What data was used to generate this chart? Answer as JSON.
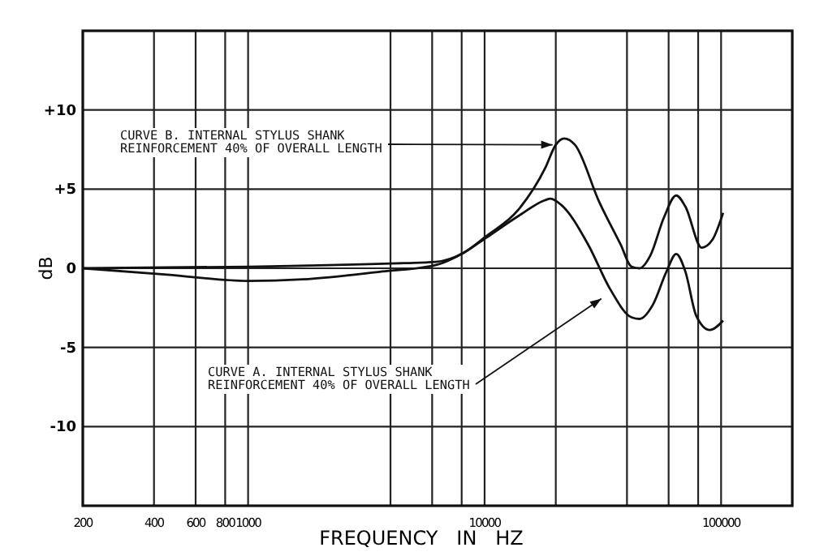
{
  "chart_data": {
    "type": "line",
    "xlabel": "FREQUENCY   IN   HZ",
    "ylabel": "dB",
    "log": "x",
    "grid": true,
    "marker": "none",
    "line_style": "solid",
    "xlim": [
      200,
      200000
    ],
    "ylim": [
      -15,
      15
    ],
    "xticks": [
      200,
      400,
      600,
      800,
      1000,
      {
        "value": 4000,
        "label": null
      },
      {
        "value": 6000,
        "label": null
      },
      {
        "value": 8000,
        "label": null
      },
      10000,
      {
        "value": 20000,
        "label": null
      },
      {
        "value": 40000,
        "label": null
      },
      {
        "value": 60000,
        "label": null
      },
      {
        "value": 80000,
        "label": null
      },
      100000
    ],
    "yticks": [
      {
        "value": 10,
        "label": "+10"
      },
      {
        "value": 5,
        "label": "+5"
      },
      0,
      -5,
      -10
    ],
    "series": [
      {
        "color": "#111111",
        "x": [
          200,
          1000,
          4000,
          6200,
          8200,
          10100,
          13900,
          18000,
          20000,
          21700,
          24100,
          30500,
          37600,
          41800,
          45200,
          50200,
          57300,
          64600,
          70600,
          82800,
          91900,
          102000
        ],
        "values": [
          0,
          0.1,
          0.3,
          0.4,
          1.0,
          2.0,
          3.7,
          6.3,
          7.8,
          8.2,
          7.8,
          4.2,
          1.5,
          0.1,
          0,
          0.8,
          3.2,
          4.6,
          3.9,
          1.3,
          1.8,
          3.5
        ]
      },
      {
        "color": "#111111",
        "x": [
          200,
          455,
          1000,
          1700,
          3700,
          6200,
          8200,
          10100,
          13900,
          18000,
          19000,
          21100,
          27400,
          33900,
          41800,
          45200,
          51500,
          58800,
          64600,
          70600,
          78500,
          89600,
          102000
        ],
        "values": [
          0,
          -0.4,
          -0.8,
          -0.7,
          -0.2,
          0.2,
          1.0,
          1.9,
          3.3,
          4.3,
          4.4,
          4.0,
          1.5,
          -1.3,
          -3.1,
          -3.2,
          -2.3,
          -0.2,
          0.9,
          -0.2,
          -3.0,
          -3.9,
          -3.3
        ]
      }
    ],
    "annotations": [
      {
        "text": "CURVE B. INTERNAL STYLUS SHANK\nREINFORCEMENT 40% OF OVERALL LENGTH",
        "x": 20000,
        "y": 7.8
      },
      {
        "text": "CURVE A. INTERNAL STYLUS SHANK\nREINFORCEMENT 40% OF OVERALL LENGTH",
        "x": 32000,
        "y": -1.8
      }
    ]
  }
}
